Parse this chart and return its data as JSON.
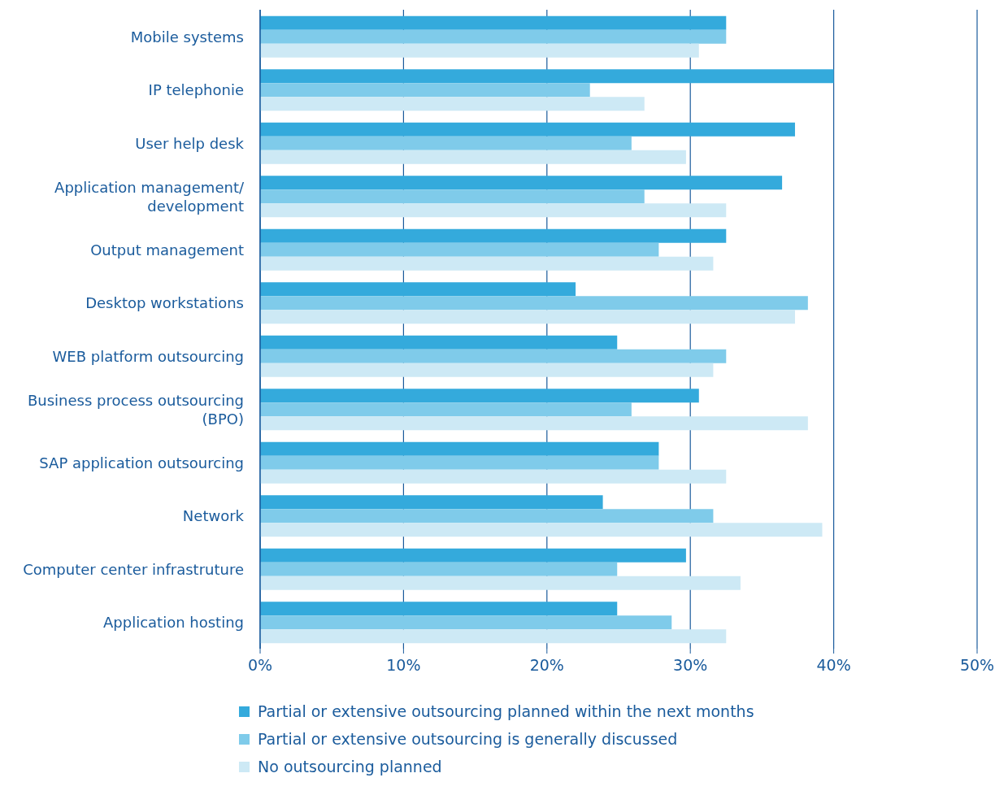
{
  "chart_data": {
    "type": "bar",
    "orientation": "horizontal",
    "categories": [
      "Mobile systems",
      "IP telephonie",
      "User help desk",
      "Application management/\ndevelopment",
      "Output management",
      "Desktop workstations",
      "WEB platform outsourcing",
      "Business process outsourcing\n(BPO)",
      "SAP application outsourcing",
      "Network",
      "Computer center infrastruture",
      "Application hosting"
    ],
    "series": [
      {
        "name": "Partial or extensive outsourcing planned within the next months",
        "color": "#34aadc",
        "values": [
          32.5,
          40,
          37.3,
          36.4,
          32.5,
          22,
          24.9,
          30.6,
          27.8,
          23.9,
          29.7,
          24.9
        ]
      },
      {
        "name": "Partial or extensive outsourcing is generally discussed",
        "color": "#7fcbea",
        "values": [
          32.5,
          23,
          25.9,
          26.8,
          27.8,
          38.2,
          32.5,
          25.9,
          27.8,
          31.6,
          24.9,
          28.7
        ]
      },
      {
        "name": "No outsourcing planned",
        "color": "#cde9f5",
        "values": [
          30.6,
          26.8,
          29.7,
          32.5,
          31.6,
          37.3,
          31.6,
          38.2,
          32.5,
          39.2,
          33.5,
          32.5
        ]
      }
    ],
    "xlim": [
      0,
      50
    ],
    "xticks": [
      {
        "value": 0,
        "label": "0%"
      },
      {
        "value": 10,
        "label": "10%"
      },
      {
        "value": 20,
        "label": "20%"
      },
      {
        "value": 30,
        "label": "30%"
      },
      {
        "value": 40,
        "label": "40%"
      },
      {
        "value": 50,
        "label": "50%"
      }
    ],
    "grid": "x",
    "legend": "bottom left"
  }
}
